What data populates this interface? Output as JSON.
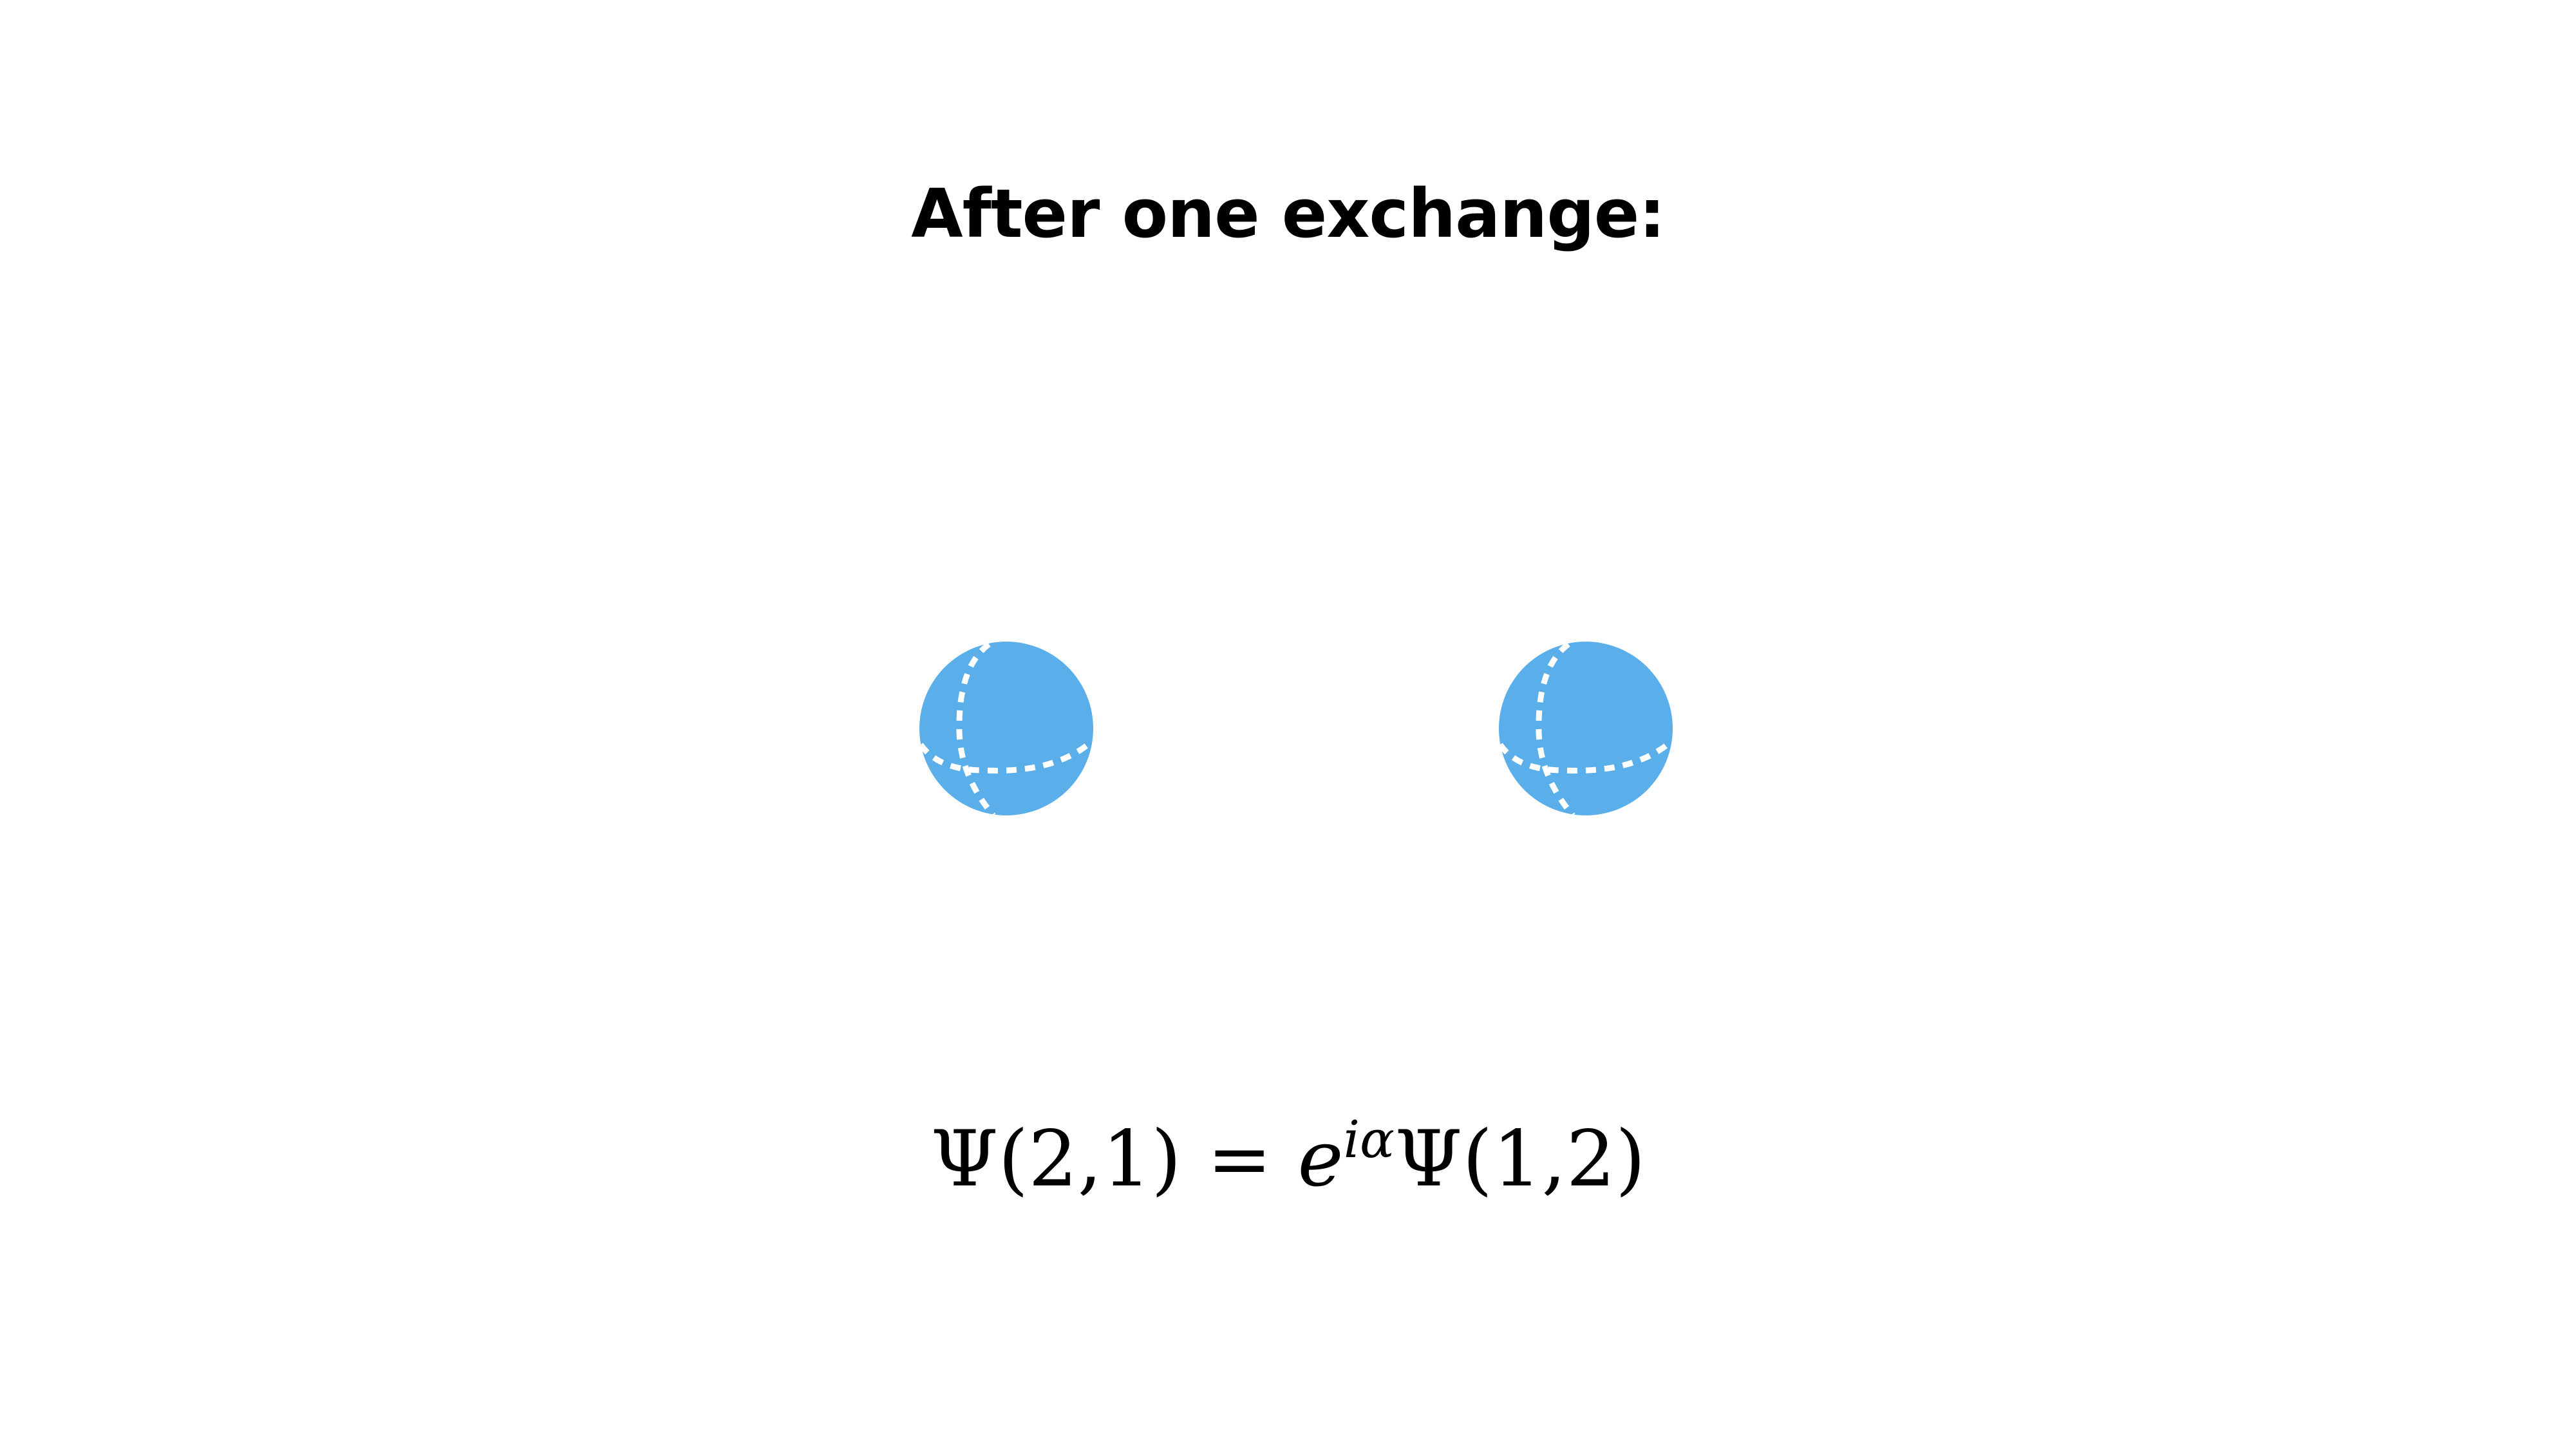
{
  "title": "After one exchange:",
  "particles": {
    "color": "#5aaeea",
    "seam_color": "#ffffff",
    "items": [
      {
        "id": "particle-1"
      },
      {
        "id": "particle-2"
      }
    ]
  },
  "equation": {
    "lhs_func": "Ψ",
    "lhs_args": "(2,1)",
    "equals": "=",
    "base": "e",
    "exponent": "iα",
    "rhs_func": "Ψ",
    "rhs_args": "(1,2)"
  }
}
